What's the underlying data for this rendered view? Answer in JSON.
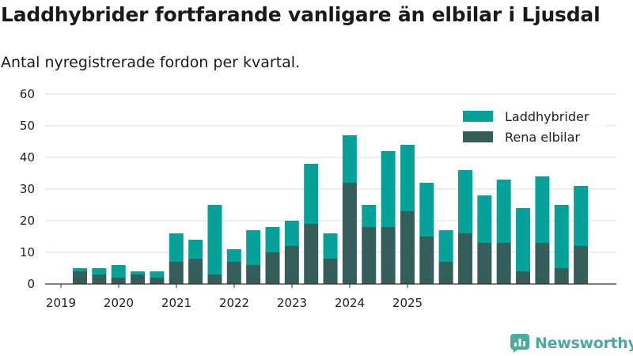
{
  "header": {
    "title": "Laddhybrider fortfarande vanligare än elbilar i Ljusdal",
    "subtitle": "Antal nyregistrerade fordon per kvartal."
  },
  "branding": {
    "name": "Newsworthy"
  },
  "colors": {
    "phev": "#06a29a",
    "bev": "#355e5a",
    "grid": "#dddddd",
    "axis": "#333333",
    "brand": "#4aaa9e"
  },
  "chart_data": {
    "type": "bar",
    "stacked": true,
    "title": "Laddhybrider fortfarande vanligare än elbilar i Ljusdal",
    "subtitle": "Antal nyregistrerade fordon per kvartal.",
    "xlabel": "",
    "ylabel": "",
    "ylim": [
      0,
      60
    ],
    "yticks": [
      0,
      10,
      20,
      30,
      40,
      50,
      60
    ],
    "grid": true,
    "legend_position": "top-right",
    "x_tick_labels": [
      "2019",
      "2020",
      "2021",
      "2022",
      "2023",
      "2024",
      "2025"
    ],
    "categories": [
      "2019 Q2",
      "2019 Q3",
      "2019 Q4",
      "2020 Q1",
      "2020 Q2",
      "2020 Q3",
      "2020 Q4",
      "2021 Q1",
      "2021 Q2",
      "2021 Q3",
      "2021 Q4",
      "2022 Q1",
      "2022 Q2",
      "2022 Q3",
      "2022 Q4",
      "2023 Q1",
      "2023 Q2",
      "2023 Q3",
      "2023 Q4",
      "2024 Q1",
      "2024 Q2",
      "2024 Q3",
      "2024 Q4",
      "2025 Q1",
      "2025 Q2",
      "2025 Q3",
      "2025 Q4"
    ],
    "series": [
      {
        "name": "Rena elbilar",
        "values": [
          4,
          3,
          2,
          3,
          2,
          7,
          8,
          3,
          7,
          6,
          10,
          12,
          19,
          8,
          32,
          18,
          18,
          23,
          15,
          7,
          16,
          13,
          13,
          4,
          13,
          5,
          12
        ]
      },
      {
        "name": "Laddhybrider",
        "values": [
          1,
          2,
          4,
          1,
          2,
          9,
          6,
          22,
          4,
          11,
          8,
          8,
          19,
          8,
          15,
          7,
          24,
          21,
          17,
          10,
          20,
          15,
          20,
          20,
          21,
          20,
          19
        ]
      }
    ],
    "legend": [
      {
        "name": "Laddhybrider"
      },
      {
        "name": "Rena elbilar"
      }
    ]
  }
}
